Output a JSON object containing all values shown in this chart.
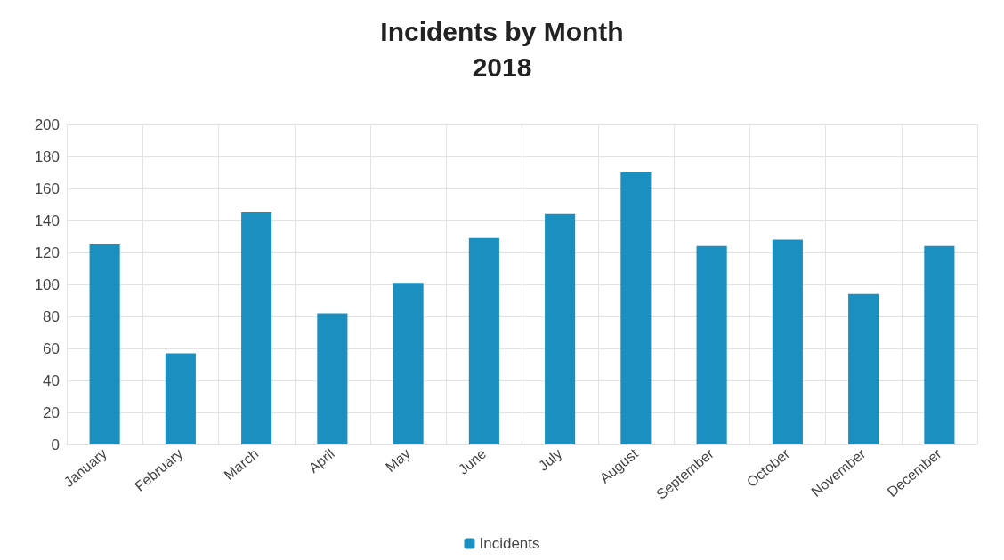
{
  "chart_data": {
    "type": "bar",
    "title": "Incidents by Month\n2018",
    "categories": [
      "January",
      "February",
      "March",
      "April",
      "May",
      "June",
      "July",
      "August",
      "September",
      "October",
      "November",
      "December"
    ],
    "series": [
      {
        "name": "Incidents",
        "color": "#1a8fc0",
        "values": [
          125,
          57,
          145,
          82,
          101,
          129,
          144,
          170,
          124,
          128,
          94,
          124
        ]
      }
    ],
    "ylim": [
      0,
      200
    ],
    "yticks": [
      0,
      20,
      40,
      60,
      80,
      100,
      120,
      140,
      160,
      180,
      200
    ],
    "grid": true,
    "legend": "bottom"
  }
}
